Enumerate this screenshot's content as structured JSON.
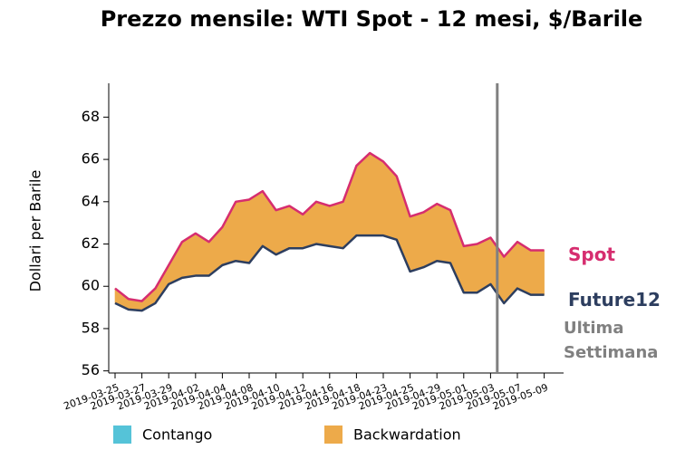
{
  "chart_data": {
    "type": "line",
    "title": "Prezzo mensile: WTI Spot - 12 mesi, $/Barile",
    "y_label": "Dollari per Barile",
    "categories": [
      "2019-03-25",
      null,
      "2019-03-27",
      null,
      "2019-03-29",
      null,
      "2019-04-02",
      null,
      "2019-04-04",
      null,
      "2019-04-08",
      null,
      "2019-04-10",
      null,
      "2019-04-12",
      null,
      "2019-04-16",
      null,
      "2019-04-18",
      null,
      "2019-04-23",
      null,
      "2019-04-25",
      null,
      "2019-04-29",
      null,
      "2019-05-01",
      null,
      "2019-05-03",
      null,
      "2019-05-07",
      null,
      "2019-05-09"
    ],
    "series": [
      {
        "name": "Spot",
        "color": "#d62d6f",
        "values": [
          59.9,
          59.4,
          59.3,
          59.9,
          61.0,
          62.1,
          62.5,
          62.1,
          62.8,
          64.0,
          64.1,
          64.5,
          63.6,
          63.8,
          63.4,
          64.0,
          63.8,
          64.0,
          65.7,
          66.3,
          65.9,
          65.2,
          63.3,
          63.5,
          63.9,
          63.6,
          61.9,
          62.0,
          62.3,
          61.4,
          62.1,
          61.7,
          61.7
        ]
      },
      {
        "name": "Future12",
        "color": "#2d3e5f",
        "values": [
          59.2,
          58.9,
          58.85,
          59.2,
          60.1,
          60.4,
          60.5,
          60.5,
          61.0,
          61.2,
          61.1,
          61.9,
          61.5,
          61.8,
          61.8,
          62.0,
          61.9,
          61.8,
          62.4,
          62.4,
          62.4,
          62.2,
          60.7,
          60.9,
          61.2,
          61.1,
          59.7,
          59.7,
          60.1,
          59.2,
          59.9,
          59.6,
          59.6
        ]
      }
    ],
    "fill_legend": [
      {
        "name": "Contango",
        "color": "#55c3d8"
      },
      {
        "name": "Backwardation",
        "color": "#edaa4a"
      }
    ],
    "annotation": [
      "Ultima",
      "Settimana"
    ],
    "annotation_color": "#808080",
    "ylim": [
      55.9,
      69.6
    ],
    "yticks": [
      56,
      58,
      60,
      62,
      64,
      66,
      68
    ]
  }
}
